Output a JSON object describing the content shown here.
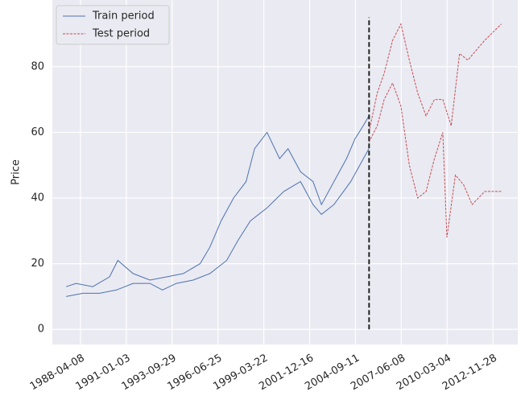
{
  "chart_data": {
    "type": "line",
    "ylabel": "Price",
    "xlim": [
      "1986-08-03",
      "2014-05-25"
    ],
    "xticks": [
      "1988-04-08",
      "1991-01-03",
      "1993-09-29",
      "1996-06-25",
      "1999-03-22",
      "2001-12-16",
      "2004-09-11",
      "2007-06-08",
      "2010-03-04",
      "2012-11-28"
    ],
    "ylim": [
      -4.6,
      100.3
    ],
    "yticks": [
      0,
      20,
      40,
      60,
      80
    ],
    "grid": true,
    "legend": "upper left",
    "split_x": "2005-07-06",
    "split_range": [
      0,
      95
    ],
    "series": [
      {
        "name": "Train period",
        "color": "#4c72b0",
        "dash": "solid",
        "x": [
          "1987-06-01",
          "1988-01-01",
          "1989-01-01",
          "1990-01-01",
          "1990-07-01",
          "1991-06-01",
          "1992-06-01",
          "1993-06-01",
          "1994-06-01",
          "1995-06-01",
          "1996-01-01",
          "1996-09-01",
          "1997-06-01",
          "1998-03-01",
          "1998-09-01",
          "1999-06-01",
          "2000-03-01",
          "2000-09-01",
          "2001-06-01",
          "2002-03-01",
          "2002-09-01",
          "2003-06-01",
          "2004-03-01",
          "2004-09-01",
          "2005-03-01",
          "2005-07-01",
          null,
          "1987-06-01",
          "1988-06-01",
          "1989-06-01",
          "1990-06-01",
          "1991-06-01",
          "1992-06-01",
          "1993-03-01",
          "1994-01-01",
          "1995-01-01",
          "1996-01-01",
          "1997-01-01",
          "1997-09-01",
          "1998-06-01",
          "1999-06-01",
          "2000-06-01",
          "2001-06-01",
          "2002-03-01",
          "2002-09-01",
          "2003-06-01",
          "2004-06-01",
          "2005-07-01"
        ],
        "values": [
          13,
          14,
          13,
          16,
          21,
          17,
          15,
          16,
          17,
          20,
          25,
          33,
          40,
          45,
          55,
          60,
          52,
          55,
          48,
          45,
          38,
          45,
          52,
          58,
          62,
          65,
          null,
          10,
          11,
          11,
          12,
          14,
          14,
          12,
          14,
          15,
          17,
          21,
          27,
          33,
          37,
          42,
          45,
          38,
          35,
          38,
          45,
          55
        ]
      },
      {
        "name": "Test period",
        "color": "#c44e52",
        "dash": "dashed",
        "x": [
          "2005-07-01",
          "2006-01-01",
          "2006-06-01",
          "2006-12-01",
          "2007-06-01",
          "2007-12-01",
          "2008-06-01",
          "2008-12-01",
          "2009-06-01",
          "2009-12-01",
          "2010-06-01",
          "2010-12-01",
          "2011-06-01",
          "2011-12-01",
          "2012-06-01",
          "2013-06-01",
          null,
          "2005-07-01",
          "2006-01-01",
          "2006-06-01",
          "2006-12-01",
          "2007-06-01",
          "2007-12-01",
          "2008-06-01",
          "2008-12-01",
          "2009-06-01",
          "2009-12-01",
          "2010-03-01",
          "2010-09-01",
          "2011-03-01",
          "2011-09-01",
          "2012-06-01",
          "2013-06-01"
        ],
        "values": [
          60,
          72,
          78,
          88,
          93,
          82,
          72,
          65,
          70,
          70,
          62,
          84,
          82,
          85,
          88,
          93,
          null,
          57,
          62,
          70,
          75,
          68,
          50,
          40,
          42,
          52,
          60,
          28,
          47,
          44,
          38,
          42,
          42
        ]
      }
    ]
  }
}
